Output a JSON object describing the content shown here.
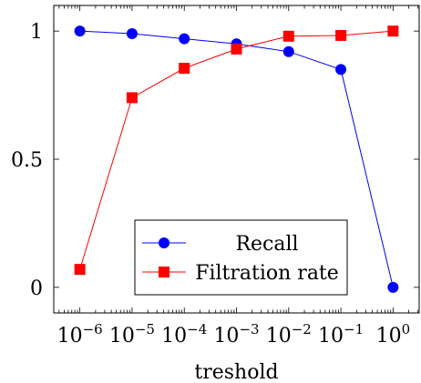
{
  "chart_data": {
    "type": "line",
    "title": "",
    "xlabel": "treshold",
    "ylabel": "",
    "xscale": "log",
    "x": [
      1e-06,
      1e-05,
      0.0001,
      0.001,
      0.01,
      0.1,
      1
    ],
    "xticks": [
      {
        "base": "10",
        "exp": "−6"
      },
      {
        "base": "10",
        "exp": "−5"
      },
      {
        "base": "10",
        "exp": "−4"
      },
      {
        "base": "10",
        "exp": "−3"
      },
      {
        "base": "10",
        "exp": "−2"
      },
      {
        "base": "10",
        "exp": "−1"
      },
      {
        "base": "10",
        "exp": "0"
      }
    ],
    "yticks": [
      "0",
      "0.5",
      "1"
    ],
    "ylim": [
      -0.1,
      1.1
    ],
    "grid": false,
    "legend_position": "bottom-right",
    "series": [
      {
        "name": "Recall",
        "marker": "circle",
        "color": "#0000ff",
        "values": [
          1.0,
          0.99,
          0.97,
          0.95,
          0.92,
          0.85,
          0.0
        ]
      },
      {
        "name": "Filtration rate",
        "marker": "square",
        "color": "#ff0000",
        "values": [
          0.07,
          0.74,
          0.855,
          0.93,
          0.98,
          0.983,
          1.0
        ]
      }
    ]
  }
}
